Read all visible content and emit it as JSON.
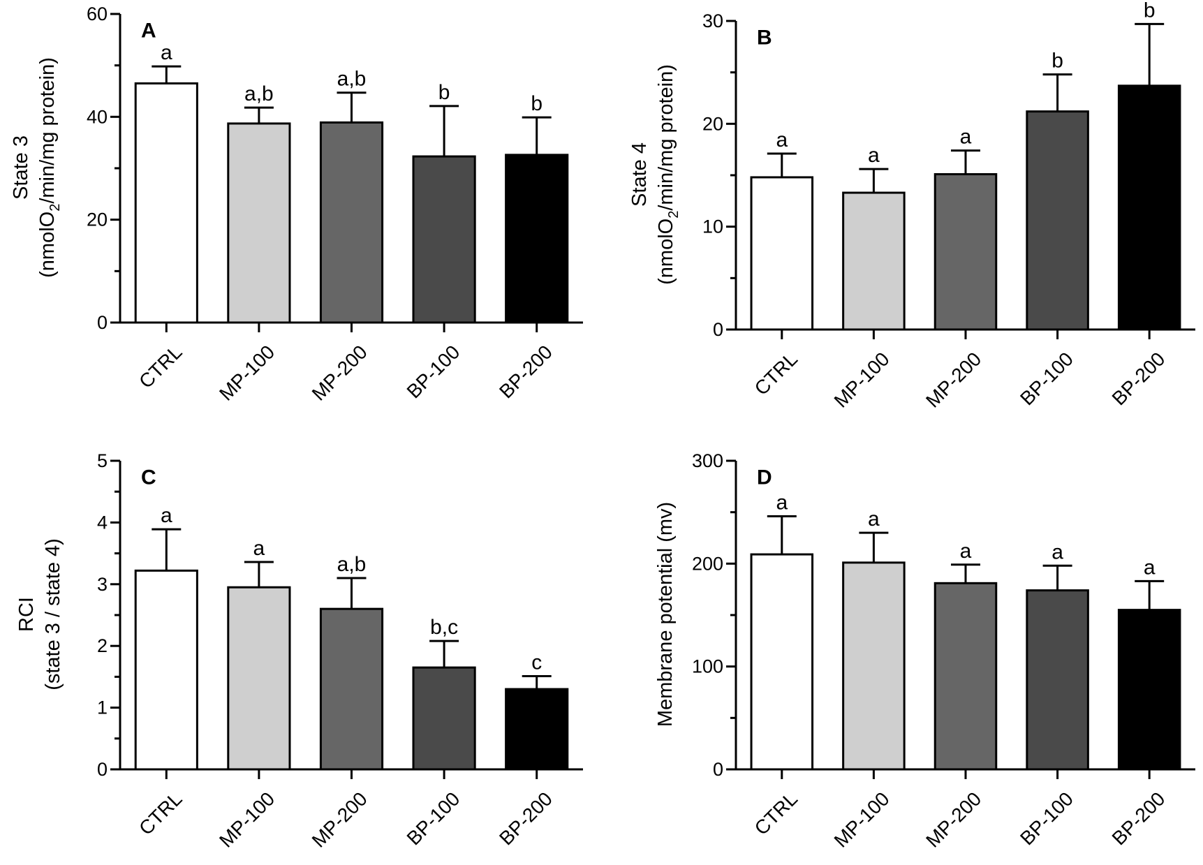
{
  "chart_data": [
    {
      "type": "bar",
      "panel": "A",
      "categories": [
        "CTRL",
        "MP-100",
        "MP-200",
        "BP-100",
        "BP-200"
      ],
      "values": [
        46.5,
        38.7,
        38.9,
        32.3,
        32.6
      ],
      "errors": [
        3.3,
        3.1,
        5.8,
        9.8,
        7.3
      ],
      "significance": [
        "a",
        "a,b",
        "a,b",
        "b",
        "b"
      ],
      "colors": [
        "#ffffff",
        "#cfcfcf",
        "#666666",
        "#4a4a4a",
        "#000000"
      ],
      "ylabel_line1": "State 3",
      "ylabel_line2_pre": "(nmolO",
      "ylabel_line2_sub": "2",
      "ylabel_line2_post": "/min/mg protein)",
      "ylim": [
        0,
        60
      ],
      "yticks": [
        0,
        20,
        40,
        60
      ]
    },
    {
      "type": "bar",
      "panel": "B",
      "categories": [
        "CTRL",
        "MP-100",
        "MP-200",
        "BP-100",
        "BP-200"
      ],
      "values": [
        14.8,
        13.3,
        15.1,
        21.2,
        23.7
      ],
      "errors": [
        2.3,
        2.3,
        2.3,
        3.6,
        6.0
      ],
      "significance": [
        "a",
        "a",
        "a",
        "b",
        "b"
      ],
      "colors": [
        "#ffffff",
        "#cfcfcf",
        "#666666",
        "#4a4a4a",
        "#000000"
      ],
      "ylabel_line1": "State 4",
      "ylabel_line2_pre": "(nmolO",
      "ylabel_line2_sub": "2",
      "ylabel_line2_post": "/min/mg protein)",
      "ylim": [
        0,
        30
      ],
      "yticks": [
        0,
        10,
        20,
        30
      ]
    },
    {
      "type": "bar",
      "panel": "C",
      "categories": [
        "CTRL",
        "MP-100",
        "MP-200",
        "BP-100",
        "BP-200"
      ],
      "values": [
        3.22,
        2.95,
        2.6,
        1.65,
        1.3
      ],
      "errors": [
        0.67,
        0.41,
        0.5,
        0.43,
        0.21
      ],
      "significance": [
        "a",
        "a",
        "a,b",
        "b,c",
        "c"
      ],
      "colors": [
        "#ffffff",
        "#cfcfcf",
        "#666666",
        "#4a4a4a",
        "#000000"
      ],
      "ylabel_line1": "RCI",
      "ylabel_line2_pre": "(state 3 / state 4)",
      "ylabel_line2_sub": "",
      "ylabel_line2_post": "",
      "ylim": [
        0,
        5
      ],
      "yticks": [
        0,
        1,
        2,
        3,
        4,
        5
      ]
    },
    {
      "type": "bar",
      "panel": "D",
      "categories": [
        "CTRL",
        "MP-100",
        "MP-200",
        "BP-100",
        "BP-200"
      ],
      "values": [
        209,
        201,
        181,
        174,
        155
      ],
      "errors": [
        37,
        29,
        18,
        24,
        28
      ],
      "significance": [
        "a",
        "a",
        "a",
        "a",
        "a"
      ],
      "colors": [
        "#ffffff",
        "#cfcfcf",
        "#666666",
        "#4a4a4a",
        "#000000"
      ],
      "ylabel_line1": "Membrane potential  (mv)",
      "ylabel_line2_pre": "",
      "ylabel_line2_sub": "",
      "ylabel_line2_post": "",
      "ylim": [
        0,
        300
      ],
      "yticks": [
        0,
        100,
        200,
        300
      ]
    }
  ]
}
